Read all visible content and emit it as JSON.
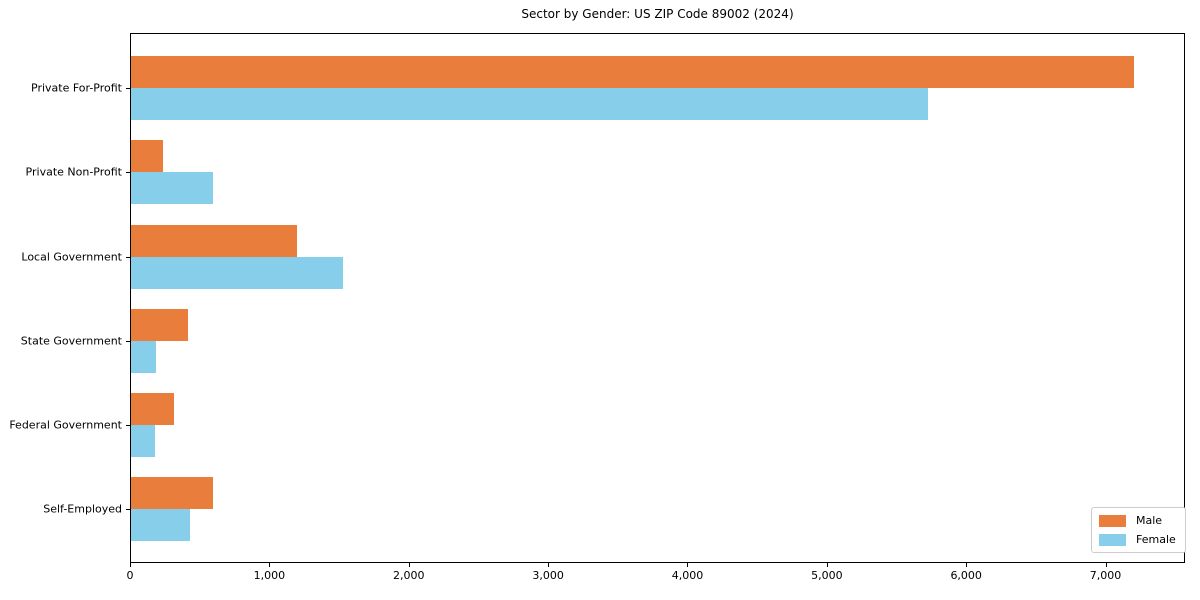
{
  "title": "Sector by Gender: US ZIP Code 89002 (2024)",
  "colors": {
    "male": "#e87d3c",
    "female": "#87ceeb",
    "axis": "#000000",
    "legend_border": "#cccccc",
    "background": "#ffffff"
  },
  "legend": {
    "position": "lower right",
    "items": [
      {
        "label": "Male",
        "color": "#e87d3c"
      },
      {
        "label": "Female",
        "color": "#87ceeb"
      }
    ]
  },
  "chart_data": {
    "type": "bar",
    "orientation": "horizontal",
    "title": "Sector by Gender: US ZIP Code 89002 (2024)",
    "xlabel": "",
    "ylabel": "",
    "categories": [
      "Private For-Profit",
      "Private Non-Profit",
      "Local Government",
      "State Government",
      "Federal Government",
      "Self-Employed"
    ],
    "series": [
      {
        "name": "Male",
        "color": "#e87d3c",
        "values": [
          7200,
          230,
          1190,
          410,
          310,
          590
        ]
      },
      {
        "name": "Female",
        "color": "#87ceeb",
        "values": [
          5720,
          590,
          1520,
          180,
          170,
          420
        ]
      }
    ],
    "xticks": [
      0,
      1000,
      2000,
      3000,
      4000,
      5000,
      6000,
      7000
    ],
    "xtick_labels": [
      "0",
      "1,000",
      "2,000",
      "3,000",
      "4,000",
      "5,000",
      "6,000",
      "7,000"
    ],
    "xlim": [
      0,
      7570
    ],
    "grid": false,
    "legend_position": "lower right"
  }
}
